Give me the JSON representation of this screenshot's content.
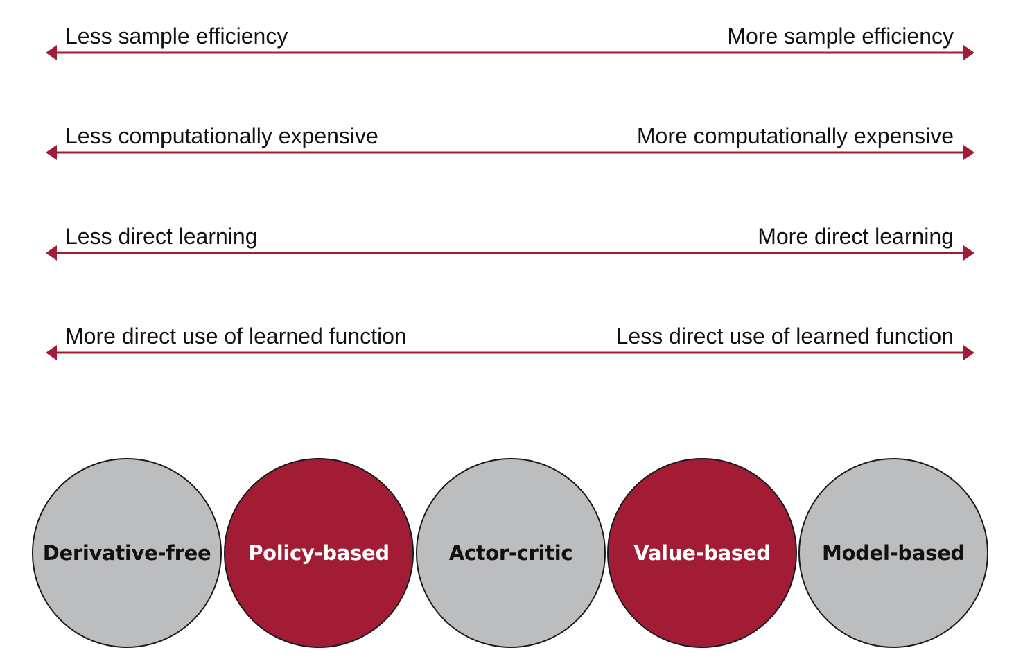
{
  "colors": {
    "accent_red": "#a11c34",
    "circle_gray": "#bcbdbf",
    "outline": "#1a1a1a",
    "text_dark": "#111111",
    "text_light": "#ffffff"
  },
  "spectrums": [
    {
      "left": "Less sample efficiency",
      "right": "More sample efficiency"
    },
    {
      "left": "Less computationally expensive",
      "right": "More computationally expensive"
    },
    {
      "left": "Less direct learning",
      "right": "More direct learning"
    },
    {
      "left": "More direct use of learned function",
      "right": "Less direct use of learned function"
    }
  ],
  "approaches": [
    {
      "label": "Derivative-free",
      "fill": "gray"
    },
    {
      "label": "Policy-based",
      "fill": "red"
    },
    {
      "label": "Actor-critic",
      "fill": "gray"
    },
    {
      "label": "Value-based",
      "fill": "red"
    },
    {
      "label": "Model-based",
      "fill": "gray"
    }
  ]
}
